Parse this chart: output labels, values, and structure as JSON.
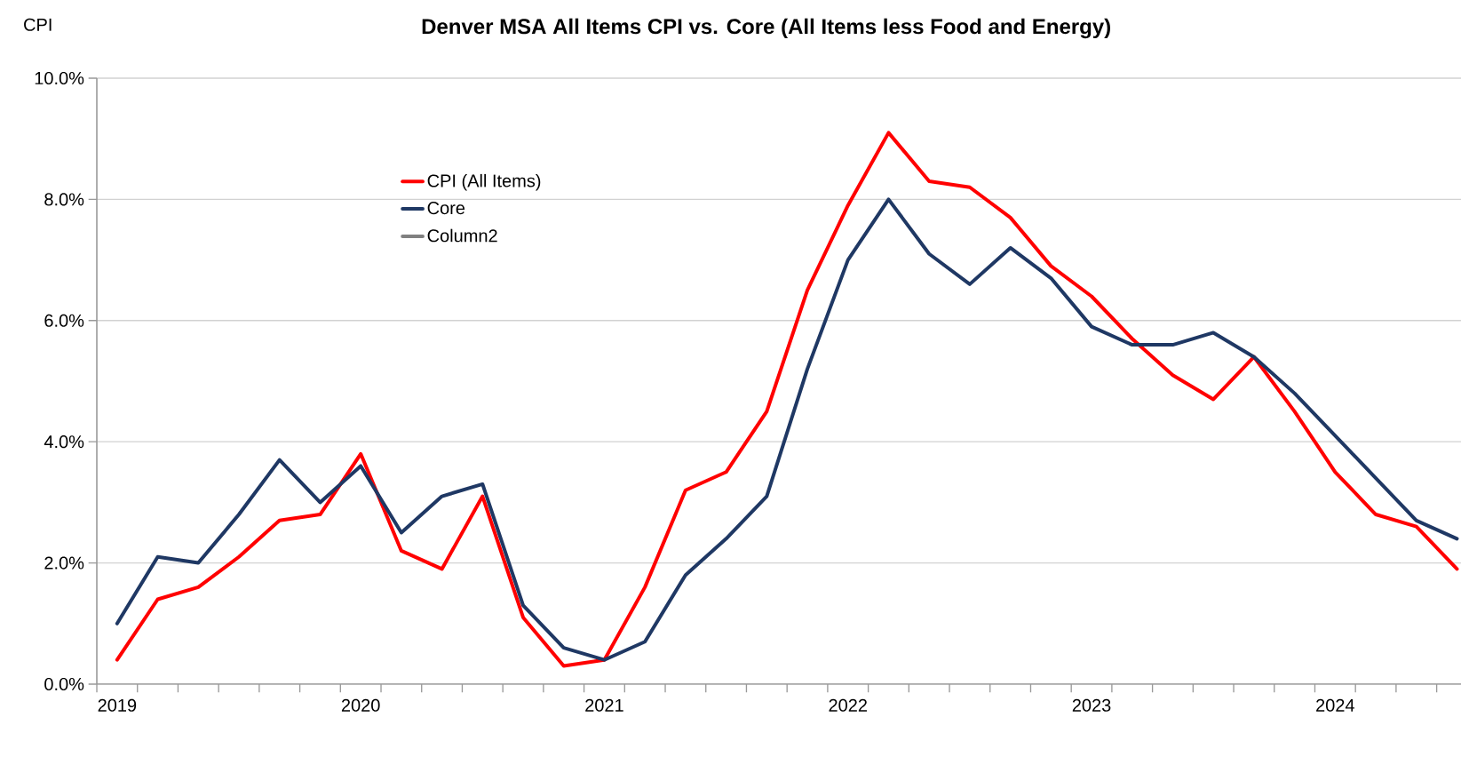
{
  "chart_data": {
    "type": "line",
    "title": "Denver MSA All Items CPI vs. Core (All Items less Food and Energy)",
    "ylabel": "CPI",
    "categories": [
      "2019",
      null,
      null,
      null,
      null,
      null,
      "2020",
      null,
      null,
      null,
      null,
      null,
      "2021",
      null,
      null,
      null,
      null,
      null,
      "2022",
      null,
      null,
      null,
      null,
      null,
      "2023",
      null,
      null,
      null,
      null,
      null,
      "2024",
      null,
      null,
      null
    ],
    "series": [
      {
        "name": "CPI (All Items)",
        "color": "#ff0000",
        "values": [
          0.4,
          1.4,
          1.6,
          2.1,
          2.7,
          2.8,
          3.8,
          2.2,
          1.9,
          3.1,
          1.1,
          0.3,
          0.4,
          1.6,
          3.2,
          3.5,
          4.5,
          6.5,
          7.9,
          9.1,
          8.3,
          8.2,
          7.7,
          6.9,
          6.4,
          5.7,
          5.1,
          4.7,
          5.4,
          4.5,
          3.5,
          2.8,
          2.6,
          1.9
        ]
      },
      {
        "name": "Core",
        "color": "#1f3864",
        "values": [
          1.0,
          2.1,
          2.0,
          2.8,
          3.7,
          3.0,
          3.6,
          2.5,
          3.1,
          3.3,
          1.3,
          0.6,
          0.4,
          0.7,
          1.8,
          2.4,
          3.1,
          5.2,
          7.0,
          8.0,
          7.1,
          6.6,
          7.2,
          6.7,
          5.9,
          5.6,
          5.6,
          5.8,
          5.4,
          4.8,
          4.1,
          3.4,
          2.7,
          2.4
        ]
      },
      {
        "name": "Column2",
        "color": "#808080",
        "values": [
          null,
          null,
          null,
          null,
          null,
          null,
          null,
          null,
          null,
          null,
          null,
          null,
          null,
          null,
          null,
          null,
          null,
          null,
          null,
          null,
          null,
          null,
          null,
          null,
          null,
          null,
          null,
          null,
          null,
          null,
          null,
          null,
          null,
          null
        ]
      }
    ],
    "ylim": [
      0,
      10
    ],
    "yticks": [
      {
        "value": 0,
        "label": "0.0%"
      },
      {
        "value": 2,
        "label": "2.0%"
      },
      {
        "value": 4,
        "label": "4.0%"
      },
      {
        "value": 6,
        "label": "6.0%"
      },
      {
        "value": 8,
        "label": "8.0%"
      },
      {
        "value": 10,
        "label": "10.0%"
      }
    ],
    "grid": "y",
    "legend": "top left"
  }
}
